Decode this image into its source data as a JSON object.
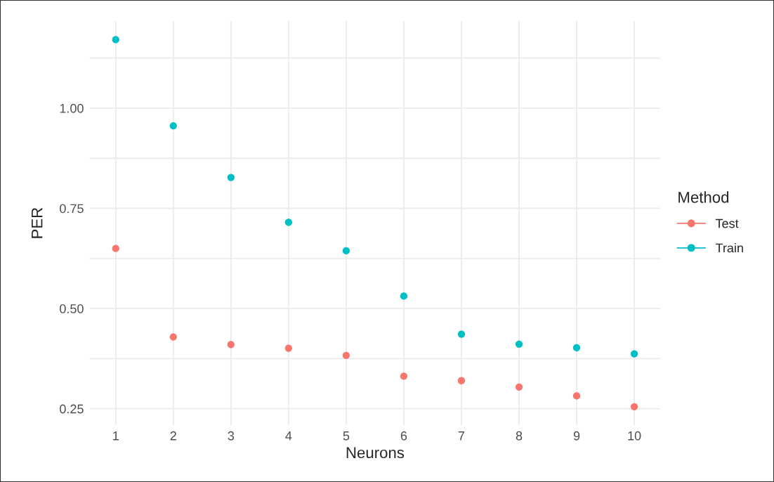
{
  "chart_data": {
    "type": "scatter",
    "xlabel": "Neurons",
    "ylabel": "PER",
    "legend_title": "Method",
    "x": [
      1,
      2,
      3,
      4,
      5,
      6,
      7,
      8,
      9,
      10
    ],
    "series": [
      {
        "name": "Test",
        "color": "#f8766d",
        "values": [
          0.65,
          0.429,
          0.41,
          0.401,
          0.383,
          0.331,
          0.32,
          0.304,
          0.282,
          0.255
        ]
      },
      {
        "name": "Train",
        "color": "#00bfc4",
        "values": [
          1.171,
          0.956,
          0.827,
          0.715,
          0.644,
          0.531,
          0.436,
          0.411,
          0.402,
          0.387
        ]
      }
    ],
    "xlim": [
      0.55,
      10.45
    ],
    "ylim": [
      0.209,
      1.217
    ],
    "xticks": [
      1,
      2,
      3,
      4,
      5,
      6,
      7,
      8,
      9,
      10
    ],
    "yticks": [
      {
        "value": 0.25,
        "label": "0.25"
      },
      {
        "value": 0.375,
        "label": null
      },
      {
        "value": 0.5,
        "label": "0.50"
      },
      {
        "value": 0.625,
        "label": null
      },
      {
        "value": 0.75,
        "label": "0.75"
      },
      {
        "value": 0.875,
        "label": null
      },
      {
        "value": 1.0,
        "label": "1.00"
      },
      {
        "value": 1.125,
        "label": null
      }
    ],
    "grid": true,
    "legend": "right",
    "marker": "circle"
  }
}
